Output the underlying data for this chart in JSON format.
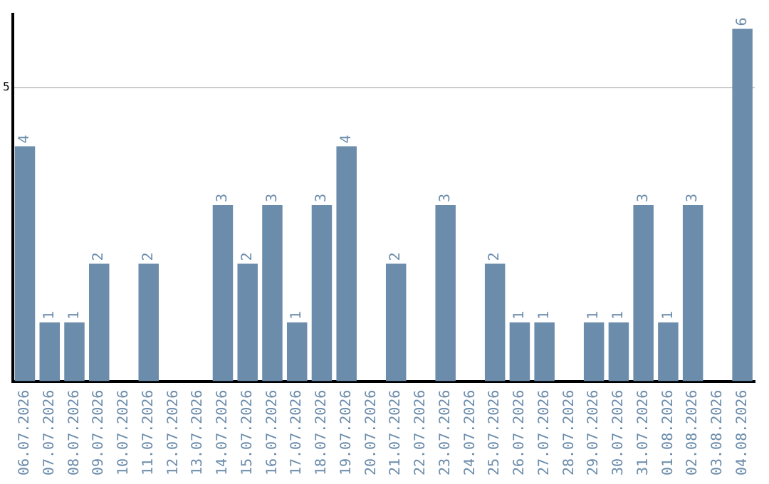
{
  "chart_data": {
    "type": "bar",
    "categories": [
      "06.07.2026",
      "07.07.2026",
      "08.07.2026",
      "09.07.2026",
      "10.07.2026",
      "11.07.2026",
      "12.07.2026",
      "13.07.2026",
      "14.07.2026",
      "15.07.2026",
      "16.07.2026",
      "17.07.2026",
      "18.07.2026",
      "19.07.2026",
      "20.07.2026",
      "21.07.2026",
      "22.07.2026",
      "23.07.2026",
      "24.07.2026",
      "25.07.2026",
      "26.07.2026",
      "27.07.2026",
      "28.07.2026",
      "29.07.2026",
      "30.07.2026",
      "31.07.2026",
      "01.08.2026",
      "02.08.2026",
      "03.08.2026",
      "04.08.2026"
    ],
    "values": [
      4,
      1,
      1,
      2,
      0,
      2,
      0,
      0,
      3,
      2,
      3,
      1,
      3,
      4,
      0,
      2,
      0,
      3,
      0,
      2,
      1,
      1,
      0,
      1,
      1,
      3,
      1,
      3,
      0,
      6
    ],
    "value_labels": [
      "4",
      "1",
      "1",
      "2",
      null,
      "2",
      null,
      null,
      "3",
      "2",
      "3",
      "1",
      "3",
      "4",
      null,
      "2",
      null,
      "3",
      null,
      "2",
      "1",
      "1",
      null,
      "1",
      "1",
      "3",
      "1",
      "3",
      null,
      "6"
    ],
    "color": "#6b8cab",
    "ylim": [
      0,
      6.25
    ],
    "yticks": [
      5
    ],
    "grid": "y",
    "legend": false
  }
}
